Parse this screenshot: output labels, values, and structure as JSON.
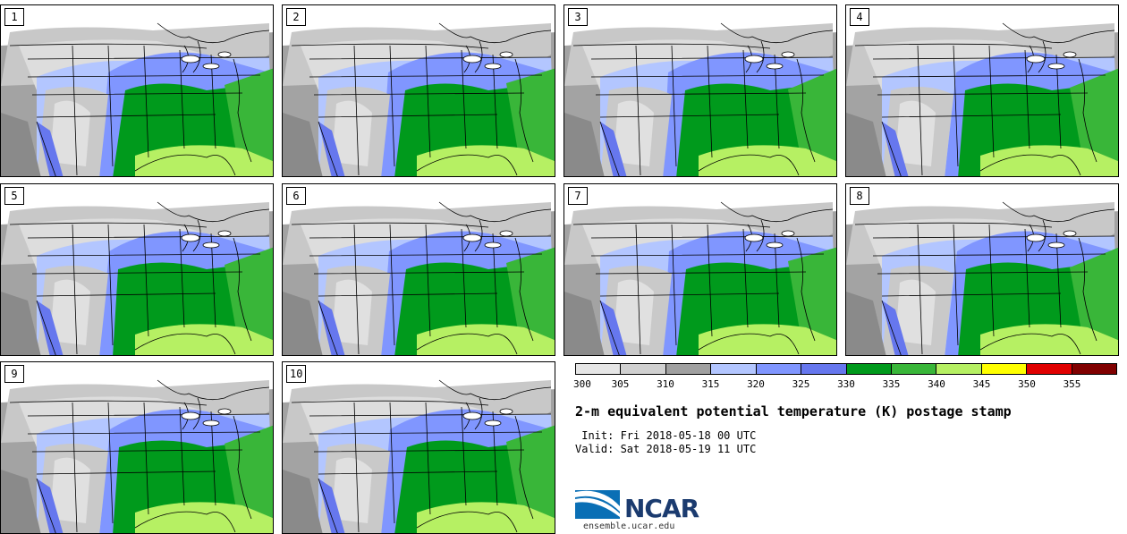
{
  "panels": [
    {
      "label": "1"
    },
    {
      "label": "2"
    },
    {
      "label": "3"
    },
    {
      "label": "4"
    },
    {
      "label": "5"
    },
    {
      "label": "6"
    },
    {
      "label": "7"
    },
    {
      "label": "8"
    },
    {
      "label": "9"
    },
    {
      "label": "10"
    }
  ],
  "colorbar": {
    "colors": [
      "#e6e6e6",
      "#d0d0d0",
      "#a0a0a0",
      "#b3c6ff",
      "#8096ff",
      "#6677ee",
      "#009a1c",
      "#39b639",
      "#b6f063",
      "#ffff00",
      "#e00000",
      "#800000"
    ],
    "ticks": [
      "300",
      "305",
      "310",
      "315",
      "320",
      "325",
      "330",
      "335",
      "340",
      "345",
      "350",
      "355"
    ]
  },
  "title": "2-m equivalent potential temperature (K) postage stamp",
  "init": " Init: Fri 2018-05-18 00 UTC",
  "valid": "Valid: Sat 2018-05-19 11 UTC",
  "logo": {
    "text": "NCAR",
    "url": "ensemble.ucar.edu"
  }
}
